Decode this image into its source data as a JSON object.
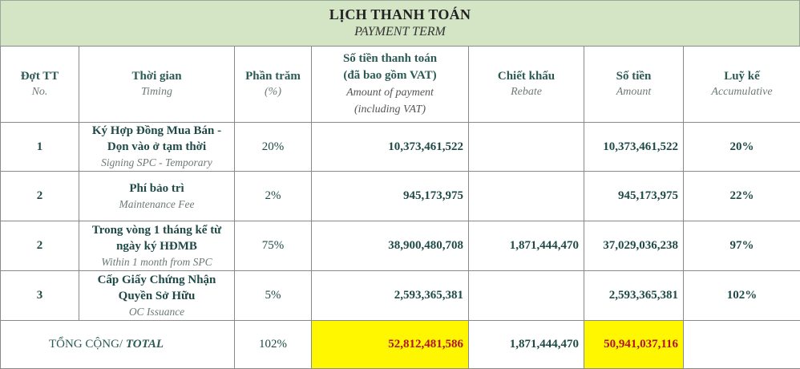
{
  "title": {
    "vi": "LỊCH THANH TOÁN",
    "en": "PAYMENT TERM"
  },
  "headers": [
    {
      "main": "Đợt TT",
      "sub": "No."
    },
    {
      "main": "Thời gian",
      "sub": "Timing"
    },
    {
      "main": "Phần trăm",
      "sub": "(%)"
    },
    {
      "main": "Số tiền thanh toán",
      "main2": "(đã bao gồm VAT)",
      "sub": "Amount of payment",
      "sub2": "(including VAT)"
    },
    {
      "main": "Chiết khấu",
      "sub": "Rebate"
    },
    {
      "main": "Số tiền",
      "sub": "Amount"
    },
    {
      "main": "Luỹ kế",
      "sub": "Accumulative"
    }
  ],
  "rows": [
    {
      "no": "1",
      "timing_line1": "Ký Hợp Đồng Mua Bán -",
      "timing_line2": "Dọn vào ở tạm thời",
      "timing_sub": "Signing SPC - Temporary",
      "percent": "20%",
      "payment": "10,373,461,522",
      "rebate": "",
      "amount": "10,373,461,522",
      "cumulative": "20%"
    },
    {
      "no": "2",
      "timing_line1": "Phí bảo trì",
      "timing_line2": "",
      "timing_sub": "Maintenance Fee",
      "percent": "2%",
      "payment": "945,173,975",
      "rebate": "",
      "amount": "945,173,975",
      "cumulative": "22%"
    },
    {
      "no": "2",
      "timing_line1": "Trong vòng 1 tháng kể từ",
      "timing_line2": "ngày ký HĐMB",
      "timing_sub": "Within 1 month from SPC",
      "percent": "75%",
      "payment": "38,900,480,708",
      "rebate": "1,871,444,470",
      "amount": "37,029,036,238",
      "cumulative": "97%"
    },
    {
      "no": "3",
      "timing_line1": "Cấp Giấy Chứng Nhận",
      "timing_line2": "Quyền Sở Hữu",
      "timing_sub": "OC Issuance",
      "percent": "5%",
      "payment": "2,593,365,381",
      "rebate": "",
      "amount": "2,593,365,381",
      "cumulative": "102%"
    }
  ],
  "total": {
    "label_vi": "TỔNG CỘNG/",
    "label_en": "TOTAL",
    "percent": "102%",
    "payment": "52,812,481,586",
    "rebate": "1,871,444,470",
    "amount": "50,941,037,116",
    "cumulative": ""
  },
  "colors": {
    "title_band": "#d3e5c5",
    "highlight": "#fff700",
    "total_red": "#b3122a",
    "text_teal": "#1f4a47"
  }
}
